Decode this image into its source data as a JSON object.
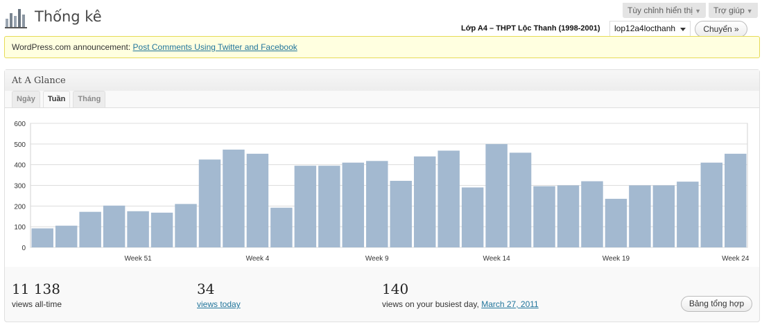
{
  "header": {
    "icon": "stats-bars-icon",
    "title": "Thống kê",
    "screen_options_label": "Tùy chỉnh hiển thị",
    "help_label": "Trợ giúp",
    "blog_title": "Lớp A4 – THPT Lộc Thanh (1998-2001)",
    "blog_select_value": "lop12a4locthanh",
    "go_button_label": "Chuyển »"
  },
  "announcement": {
    "prefix": "WordPress.com announcement:",
    "link_text": "Post Comments Using Twitter and Facebook"
  },
  "glance": {
    "title": "At A Glance",
    "tabs": [
      {
        "label": "Ngày",
        "active": false
      },
      {
        "label": "Tuần",
        "active": true
      },
      {
        "label": "Tháng",
        "active": false
      }
    ]
  },
  "chart_data": {
    "type": "bar",
    "color": "#a3b9d0",
    "ylim": [
      0,
      600
    ],
    "yticks": [
      0,
      100,
      200,
      300,
      400,
      500,
      600
    ],
    "grid": true,
    "xtick_labels": [
      {
        "label": "Week 51",
        "at_index": 4
      },
      {
        "label": "Week 4",
        "at_index": 9
      },
      {
        "label": "Week 9",
        "at_index": 14
      },
      {
        "label": "Week 14",
        "at_index": 19
      },
      {
        "label": "Week 19",
        "at_index": 24
      },
      {
        "label": "Week 24",
        "at_index": 29
      }
    ],
    "values": [
      92,
      105,
      172,
      202,
      175,
      168,
      210,
      425,
      473,
      453,
      192,
      395,
      395,
      410,
      418,
      322,
      440,
      468,
      290,
      500,
      458,
      296,
      300,
      320,
      235,
      300,
      300,
      318,
      410,
      453
    ]
  },
  "summary": {
    "all_time_value": "11 138",
    "all_time_label": "views all-time",
    "today_value": "34",
    "today_label": "views today",
    "busiest_value": "140",
    "busiest_label": "views on your busiest day,",
    "busiest_date": "March 27, 2011",
    "summary_button_label": "Bảng tổng hợp"
  }
}
